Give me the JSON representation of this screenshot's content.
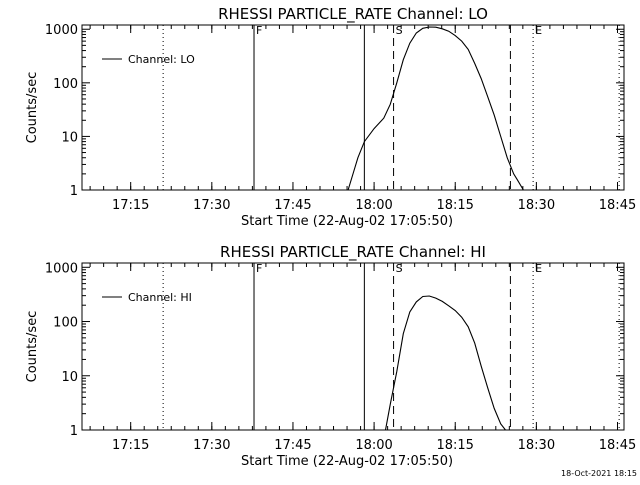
{
  "chart_data": [
    {
      "type": "line",
      "title": "RHESSI  PARTICLE_RATE  Channel: LO",
      "xlabel": "Start Time (22-Aug-02 17:05:50)",
      "ylabel": "Counts/sec",
      "yscale": "log",
      "ylim": [
        1,
        1200
      ],
      "xlim": [
        17.1,
        18.77
      ],
      "xticks": [
        17.25,
        17.5,
        17.75,
        18.0,
        18.25,
        18.5,
        18.75
      ],
      "xtick_labels": [
        "17:15",
        "17:30",
        "17:45",
        "18:00",
        "18:15",
        "18:30",
        "18:45"
      ],
      "yticks": [
        1,
        10,
        100,
        1000
      ],
      "ytick_labels": [
        "1",
        "10",
        "100",
        "1000"
      ],
      "legend": {
        "position": "top-left",
        "entries": [
          "Channel: LO"
        ]
      },
      "markers": [
        {
          "x": 17.35,
          "style": "dotted"
        },
        {
          "x": 17.63,
          "style": "solid",
          "label": "F"
        },
        {
          "x": 17.97,
          "style": "solid"
        },
        {
          "x": 18.06,
          "style": "dashed",
          "label": "S"
        },
        {
          "x": 18.42,
          "style": "dashed"
        },
        {
          "x": 18.49,
          "style": "dotted",
          "label": "E"
        },
        {
          "x": 18.755,
          "style": "dotted"
        }
      ],
      "series": [
        {
          "x": [
            17.92,
            17.935,
            17.95,
            17.97,
            18.0,
            18.03,
            18.05,
            18.07,
            18.09,
            18.11,
            18.13,
            18.15,
            18.17,
            18.19,
            18.21,
            18.23,
            18.25,
            18.27,
            18.29,
            18.31,
            18.33,
            18.35,
            18.37,
            18.39,
            18.41,
            18.43,
            18.44,
            18.44,
            18.46
          ],
          "y": [
            1,
            2,
            4,
            8,
            14,
            22,
            40,
            100,
            270,
            550,
            850,
            1040,
            1100,
            1090,
            1020,
            920,
            760,
            600,
            420,
            230,
            120,
            55,
            25,
            10,
            4,
            2,
            1.6,
            1.6,
            1
          ]
        }
      ]
    },
    {
      "type": "line",
      "title": "RHESSI  PARTICLE_RATE  Channel: HI",
      "xlabel": "Start Time (22-Aug-02 17:05:50)",
      "ylabel": "Counts/sec",
      "yscale": "log",
      "ylim": [
        1,
        1200
      ],
      "xlim": [
        17.1,
        18.77
      ],
      "xticks": [
        17.25,
        17.5,
        17.75,
        18.0,
        18.25,
        18.5,
        18.75
      ],
      "xtick_labels": [
        "17:15",
        "17:30",
        "17:45",
        "18:00",
        "18:15",
        "18:30",
        "18:45"
      ],
      "yticks": [
        1,
        10,
        100,
        1000
      ],
      "ytick_labels": [
        "1",
        "10",
        "100",
        "1000"
      ],
      "legend": {
        "position": "top-left",
        "entries": [
          "Channel: HI"
        ]
      },
      "markers": [
        {
          "x": 17.35,
          "style": "dotted"
        },
        {
          "x": 17.63,
          "style": "solid",
          "label": "F"
        },
        {
          "x": 17.97,
          "style": "solid"
        },
        {
          "x": 18.06,
          "style": "dashed",
          "label": "S"
        },
        {
          "x": 18.42,
          "style": "dashed"
        },
        {
          "x": 18.49,
          "style": "dotted",
          "label": "E"
        },
        {
          "x": 18.755,
          "style": "dotted"
        }
      ],
      "series": [
        {
          "x": [
            18.035,
            18.05,
            18.07,
            18.09,
            18.11,
            18.13,
            18.15,
            18.17,
            18.19,
            18.21,
            18.23,
            18.25,
            18.27,
            18.29,
            18.31,
            18.33,
            18.35,
            18.37,
            18.39,
            18.405
          ],
          "y": [
            1,
            3,
            12,
            60,
            150,
            230,
            290,
            295,
            270,
            235,
            195,
            160,
            120,
            80,
            40,
            15,
            6,
            2.5,
            1.3,
            1
          ]
        }
      ]
    }
  ],
  "footer": {
    "timestamp": "18-Oct-2021 18:15"
  }
}
